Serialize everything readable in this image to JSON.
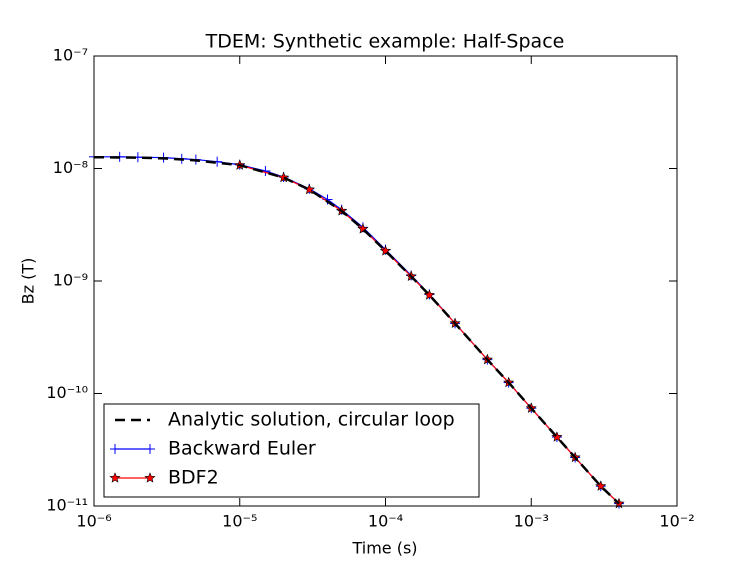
{
  "chart_data": {
    "type": "line",
    "title": "TDEM: Synthetic example: Half-Space",
    "x_label": "Time (s)",
    "y_label": "Bz (T)",
    "log_x": true,
    "log_y": true,
    "grid": false,
    "legend": "lower left",
    "xlim": [
      1e-06,
      0.01
    ],
    "ylim": [
      1e-11,
      1e-07
    ],
    "xticks": [
      {
        "value": 1e-06,
        "label": "10⁻⁶"
      },
      {
        "value": 1e-05,
        "label": "10⁻⁵"
      },
      {
        "value": 0.0001,
        "label": "10⁻⁴"
      },
      {
        "value": 0.001,
        "label": "10⁻³"
      },
      {
        "value": 0.01,
        "label": "10⁻²"
      }
    ],
    "yticks": [
      {
        "value": 1e-11,
        "label": "10⁻¹¹"
      },
      {
        "value": 1e-10,
        "label": "10⁻¹⁰"
      },
      {
        "value": 1e-09,
        "label": "10⁻⁹"
      },
      {
        "value": 1e-08,
        "label": "10⁻⁸"
      },
      {
        "value": 1e-07,
        "label": "10⁻⁷"
      }
    ],
    "series": [
      {
        "name": "Analytic solution, circular loop",
        "color": "#000000",
        "linestyle": "dashed",
        "marker": "none",
        "x": [
          1e-06,
          2e-06,
          3e-06,
          5e-06,
          1e-05,
          2e-05,
          3e-05,
          5e-05,
          7e-05,
          0.0001,
          0.00015,
          0.0002,
          0.0003,
          0.0005,
          0.0007,
          0.001,
          0.0015,
          0.002,
          0.003,
          0.004
        ],
        "values": [
          1.26e-08,
          1.25e-08,
          1.23e-08,
          1.18e-08,
          1.07e-08,
          8.3e-09,
          6.5e-09,
          4.2e-09,
          2.9e-09,
          1.85e-09,
          1.1e-09,
          7.5e-10,
          4.2e-10,
          2e-10,
          1.25e-10,
          7.4e-11,
          4.1e-11,
          2.7e-11,
          1.5e-11,
          1.05e-11
        ]
      },
      {
        "name": "Backward Euler",
        "color": "#0000ff",
        "linestyle": "solid",
        "marker": "plus",
        "x": [
          1e-06,
          1.5e-06,
          2e-06,
          3e-06,
          4e-06,
          5e-06,
          7e-06,
          1e-05,
          1.5e-05,
          2e-05,
          3e-05,
          4e-05,
          5e-05,
          7e-05,
          0.0001,
          0.00015,
          0.0002,
          0.0003,
          0.0005,
          0.0007,
          0.001,
          0.0015,
          0.002,
          0.003,
          0.004
        ],
        "values": [
          1.27e-08,
          1.27e-08,
          1.26e-08,
          1.25e-08,
          1.22e-08,
          1.2e-08,
          1.15e-08,
          1.08e-08,
          9.5e-09,
          8.4e-09,
          6.6e-09,
          5.3e-09,
          4.3e-09,
          3e-09,
          1.9e-09,
          1.12e-09,
          7.6e-10,
          4.2e-10,
          2e-10,
          1.25e-10,
          7.4e-11,
          4.1e-11,
          2.7e-11,
          1.5e-11,
          1.05e-11
        ]
      },
      {
        "name": "BDF2",
        "color": "#ff0000",
        "linestyle": "solid",
        "marker": "star",
        "x": [
          1e-05,
          2e-05,
          3e-05,
          5e-05,
          7e-05,
          0.0001,
          0.00015,
          0.0002,
          0.0003,
          0.0005,
          0.0007,
          0.001,
          0.0015,
          0.002,
          0.003,
          0.004
        ],
        "values": [
          1.07e-08,
          8.3e-09,
          6.5e-09,
          4.2e-09,
          2.9e-09,
          1.85e-09,
          1.1e-09,
          7.5e-10,
          4.2e-10,
          2e-10,
          1.25e-10,
          7.4e-11,
          4.1e-11,
          2.7e-11,
          1.5e-11,
          1.05e-11
        ]
      }
    ]
  }
}
